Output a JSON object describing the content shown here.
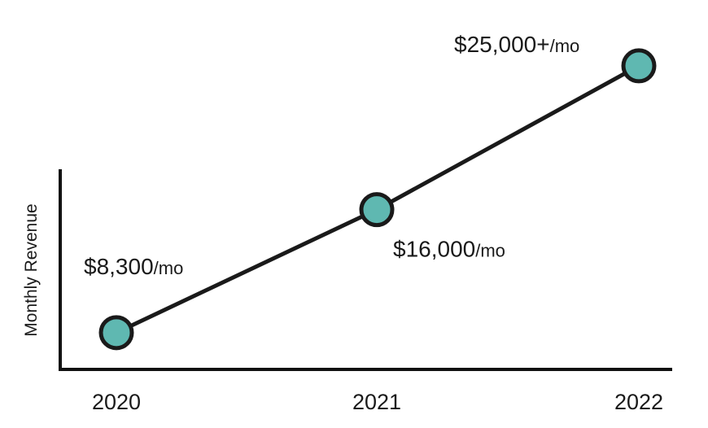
{
  "chart_data": {
    "type": "line",
    "title": "",
    "xlabel": "",
    "ylabel": "Monthly Revenue",
    "categories": [
      "2020",
      "2021",
      "2022"
    ],
    "values": [
      8300,
      16000,
      25000
    ],
    "data_labels": [
      {
        "main": "$8,300",
        "unit": "/mo"
      },
      {
        "main": "$16,000",
        "unit": "/mo"
      },
      {
        "main": "$25,000+",
        "unit": "/mo"
      }
    ],
    "ylim": [
      6000,
      28000
    ],
    "grid": false,
    "legend": "none",
    "colors": {
      "point_fill": "#5fb8b1",
      "line": "#1a1a1a",
      "axis": "#111111"
    }
  }
}
